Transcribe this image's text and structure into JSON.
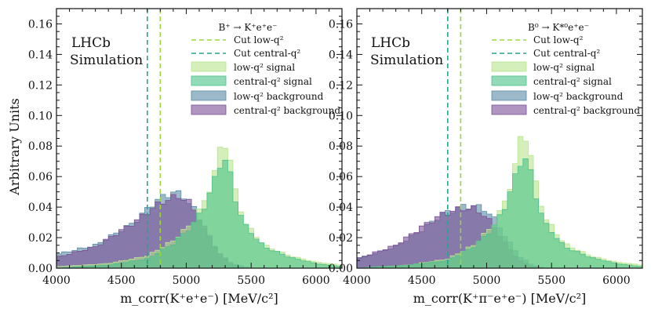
{
  "chart_data": [
    {
      "type": "histogram",
      "panel": "left",
      "annotation": [
        "LHCb",
        "Simulation"
      ],
      "xlabel": "m_corr(K⁺e⁺e⁻) [MeV/c²]",
      "ylabel": "Arbitrary Units",
      "xlim": [
        4000,
        6200
      ],
      "ylim": [
        0,
        0.17
      ],
      "xticks": [
        4000,
        4500,
        5000,
        5500,
        6000
      ],
      "yticks": [
        0.0,
        0.02,
        0.04,
        0.06,
        0.08,
        0.1,
        0.12,
        0.14,
        0.16
      ],
      "legend_title": "B⁺ → K⁺e⁺e⁻",
      "cuts": [
        {
          "name": "Cut low-q²",
          "x": 4800,
          "color": "#9ad53f"
        },
        {
          "name": "Cut central-q²",
          "x": 4700,
          "color": "#27a48f"
        }
      ],
      "series": [
        {
          "name": "low-q² background",
          "color": "#5a8ba6",
          "points": [
            [
              4000,
              0.009
            ],
            [
              4300,
              0.015
            ],
            [
              4600,
              0.03
            ],
            [
              4750,
              0.043
            ],
            [
              4850,
              0.048
            ],
            [
              4900,
              0.05
            ],
            [
              4980,
              0.047
            ],
            [
              5050,
              0.04
            ],
            [
              5150,
              0.025
            ],
            [
              5250,
              0.01
            ],
            [
              5350,
              0.003
            ],
            [
              5500,
              0.0
            ]
          ]
        },
        {
          "name": "central-q² background",
          "color": "#7b4f96",
          "points": [
            [
              4000,
              0.007
            ],
            [
              4300,
              0.014
            ],
            [
              4600,
              0.03
            ],
            [
              4750,
              0.04
            ],
            [
              4850,
              0.045
            ],
            [
              4950,
              0.047
            ],
            [
              5000,
              0.045
            ],
            [
              5050,
              0.04
            ],
            [
              5150,
              0.025
            ],
            [
              5250,
              0.01
            ],
            [
              5350,
              0.002
            ],
            [
              5450,
              0.0
            ]
          ]
        },
        {
          "name": "low-q² signal",
          "color": "#b8e58c",
          "points": [
            [
              4000,
              0.001
            ],
            [
              4400,
              0.003
            ],
            [
              4700,
              0.008
            ],
            [
              4900,
              0.018
            ],
            [
              5050,
              0.03
            ],
            [
              5150,
              0.045
            ],
            [
              5230,
              0.065
            ],
            [
              5280,
              0.085
            ],
            [
              5320,
              0.08
            ],
            [
              5380,
              0.05
            ],
            [
              5450,
              0.03
            ],
            [
              5600,
              0.015
            ],
            [
              5800,
              0.008
            ],
            [
              6000,
              0.004
            ],
            [
              6200,
              0.002
            ]
          ]
        },
        {
          "name": "central-q² signal",
          "color": "#4bc28a",
          "points": [
            [
              4000,
              0.0
            ],
            [
              4400,
              0.002
            ],
            [
              4700,
              0.006
            ],
            [
              4900,
              0.016
            ],
            [
              5050,
              0.028
            ],
            [
              5150,
              0.042
            ],
            [
              5230,
              0.06
            ],
            [
              5280,
              0.074
            ],
            [
              5320,
              0.068
            ],
            [
              5380,
              0.045
            ],
            [
              5450,
              0.028
            ],
            [
              5600,
              0.014
            ],
            [
              5800,
              0.007
            ],
            [
              6000,
              0.003
            ],
            [
              6200,
              0.001
            ]
          ]
        }
      ]
    },
    {
      "type": "histogram",
      "panel": "right",
      "annotation": [
        "LHCb",
        "Simulation"
      ],
      "xlabel": "m_corr(K⁺π⁻e⁺e⁻) [MeV/c²]",
      "xlim": [
        4000,
        6200
      ],
      "ylim": [
        0,
        0.17
      ],
      "xticks": [
        4000,
        4500,
        5000,
        5500,
        6000
      ],
      "yticks": [
        0.0,
        0.02,
        0.04,
        0.06,
        0.08,
        0.1,
        0.12,
        0.14,
        0.16
      ],
      "legend_title": "B⁰ → K*⁰e⁺e⁻",
      "cuts": [
        {
          "name": "Cut low-q²",
          "x": 4800,
          "color": "#9ad53f"
        },
        {
          "name": "Cut central-q²",
          "x": 4700,
          "color": "#27a48f"
        }
      ],
      "series": [
        {
          "name": "low-q² background",
          "color": "#5a8ba6",
          "points": [
            [
              4000,
              0.006
            ],
            [
              4300,
              0.014
            ],
            [
              4500,
              0.025
            ],
            [
              4650,
              0.035
            ],
            [
              4800,
              0.04
            ],
            [
              4900,
              0.041
            ],
            [
              5000,
              0.038
            ],
            [
              5080,
              0.03
            ],
            [
              5150,
              0.02
            ],
            [
              5250,
              0.008
            ],
            [
              5350,
              0.002
            ],
            [
              5450,
              0.0
            ]
          ]
        },
        {
          "name": "central-q² background",
          "color": "#7b4f96",
          "points": [
            [
              4000,
              0.006
            ],
            [
              4300,
              0.015
            ],
            [
              4500,
              0.027
            ],
            [
              4650,
              0.035
            ],
            [
              4800,
              0.039
            ],
            [
              4900,
              0.039
            ],
            [
              4980,
              0.035
            ],
            [
              5050,
              0.028
            ],
            [
              5150,
              0.015
            ],
            [
              5250,
              0.005
            ],
            [
              5350,
              0.001
            ],
            [
              5450,
              0.0
            ]
          ]
        },
        {
          "name": "low-q² signal",
          "color": "#b8e58c",
          "points": [
            [
              4000,
              0.0
            ],
            [
              4400,
              0.002
            ],
            [
              4700,
              0.006
            ],
            [
              4900,
              0.015
            ],
            [
              5050,
              0.028
            ],
            [
              5150,
              0.045
            ],
            [
              5230,
              0.07
            ],
            [
              5280,
              0.093
            ],
            [
              5320,
              0.082
            ],
            [
              5380,
              0.055
            ],
            [
              5450,
              0.033
            ],
            [
              5600,
              0.016
            ],
            [
              5800,
              0.008
            ],
            [
              6000,
              0.004
            ],
            [
              6200,
              0.002
            ]
          ]
        },
        {
          "name": "central-q² signal",
          "color": "#4bc28a",
          "points": [
            [
              4000,
              0.0
            ],
            [
              4400,
              0.002
            ],
            [
              4700,
              0.005
            ],
            [
              4900,
              0.014
            ],
            [
              5050,
              0.026
            ],
            [
              5150,
              0.042
            ],
            [
              5230,
              0.062
            ],
            [
              5280,
              0.075
            ],
            [
              5320,
              0.069
            ],
            [
              5380,
              0.047
            ],
            [
              5450,
              0.029
            ],
            [
              5600,
              0.014
            ],
            [
              5800,
              0.007
            ],
            [
              6000,
              0.003
            ],
            [
              6200,
              0.001
            ]
          ]
        }
      ]
    }
  ],
  "legend": {
    "cut_low": "Cut low-q²",
    "cut_central": "Cut central-q²",
    "low_signal": "low-q² signal",
    "central_signal": "central-q² signal",
    "low_background": "low-q² background",
    "central_background": "central-q² background"
  }
}
